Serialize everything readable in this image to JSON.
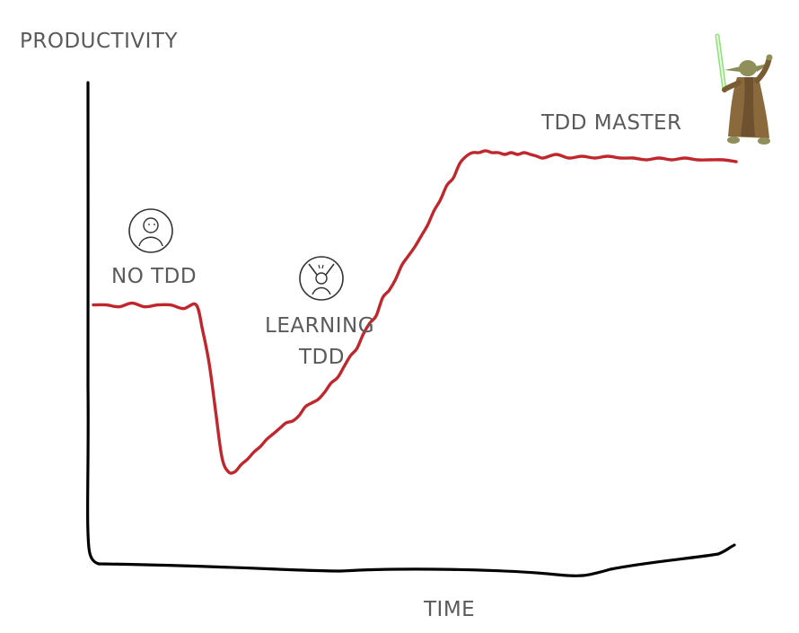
{
  "chart_data": {
    "type": "line",
    "title": "",
    "xlabel": "TIME",
    "ylabel": "PRODUCTIVITY",
    "grid": false,
    "legend": "none",
    "xlim": [
      0,
      100
    ],
    "ylim": [
      0,
      100
    ],
    "series": [
      {
        "color": "#c0272d",
        "x": [
          0,
          2,
          4,
          6,
          8,
          10,
          12,
          14,
          16,
          17,
          18,
          19,
          20,
          21,
          22,
          23,
          24,
          25,
          26,
          27,
          28,
          29,
          30,
          31,
          32,
          33,
          34,
          35,
          36,
          37,
          38,
          39,
          40,
          41,
          42,
          43,
          44,
          45,
          46,
          47,
          48,
          49,
          50,
          51,
          52,
          53,
          54,
          55,
          56,
          57,
          58,
          59,
          60,
          61,
          62,
          63,
          64,
          65,
          66,
          67,
          68,
          69,
          70,
          72,
          74,
          76,
          78,
          80,
          82,
          84,
          86,
          88,
          90,
          92,
          94,
          96,
          98,
          100
        ],
        "y": [
          59,
          59,
          58.5,
          59.5,
          58.5,
          59,
          59,
          58,
          59,
          52,
          43,
          30,
          17,
          13,
          13,
          15,
          16.5,
          18.5,
          20,
          22,
          23.5,
          25,
          26.5,
          27,
          28.5,
          31,
          32,
          33,
          35,
          37.5,
          39,
          42,
          45,
          47,
          51,
          54,
          56,
          61,
          63,
          66,
          70,
          72.5,
          75,
          78,
          81,
          85,
          88,
          92,
          94,
          98,
          100,
          101,
          101,
          101.5,
          101,
          101,
          100.5,
          101,
          100.5,
          101,
          100.5,
          100,
          99.5,
          100.5,
          99.5,
          100,
          99.5,
          100,
          99.5,
          99.5,
          99,
          99.5,
          99,
          99.5,
          99,
          99,
          99,
          98.5
        ]
      }
    ],
    "annotations": [
      {
        "text": "NO TDD",
        "x": 11,
        "y": 66,
        "icon": "person-calm-icon"
      },
      {
        "text": "LEARNING",
        "text2": "TDD",
        "x": 38,
        "y": 52,
        "icon": "person-frustrated-icon"
      },
      {
        "text": "TDD MASTER",
        "x": 82,
        "y": 108,
        "icon": "yoda-jedi-icon"
      }
    ]
  },
  "colors": {
    "axes": "#000000",
    "curve": "#c0272d",
    "text": "#5a5a5a"
  }
}
